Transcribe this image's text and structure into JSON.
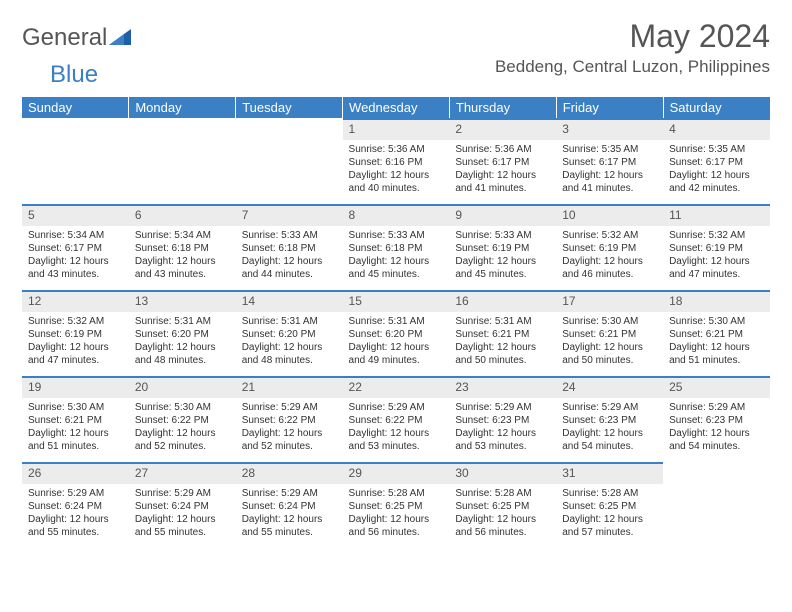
{
  "brand": {
    "part1": "General",
    "part2": "Blue"
  },
  "title": "May 2024",
  "location": "Beddeng, Central Luzon, Philippines",
  "colors": {
    "header_bg": "#3b7fc4",
    "header_text": "#ffffff",
    "daynum_bg": "#ececec",
    "daynum_border": "#3b7fc4",
    "body_text": "#333333",
    "title_text": "#555555",
    "page_bg": "#ffffff"
  },
  "weekdays": [
    "Sunday",
    "Monday",
    "Tuesday",
    "Wednesday",
    "Thursday",
    "Friday",
    "Saturday"
  ],
  "weeks": [
    [
      null,
      null,
      null,
      {
        "n": "1",
        "sr": "5:36 AM",
        "ss": "6:16 PM",
        "dl": "12 hours and 40 minutes."
      },
      {
        "n": "2",
        "sr": "5:36 AM",
        "ss": "6:17 PM",
        "dl": "12 hours and 41 minutes."
      },
      {
        "n": "3",
        "sr": "5:35 AM",
        "ss": "6:17 PM",
        "dl": "12 hours and 41 minutes."
      },
      {
        "n": "4",
        "sr": "5:35 AM",
        "ss": "6:17 PM",
        "dl": "12 hours and 42 minutes."
      }
    ],
    [
      {
        "n": "5",
        "sr": "5:34 AM",
        "ss": "6:17 PM",
        "dl": "12 hours and 43 minutes."
      },
      {
        "n": "6",
        "sr": "5:34 AM",
        "ss": "6:18 PM",
        "dl": "12 hours and 43 minutes."
      },
      {
        "n": "7",
        "sr": "5:33 AM",
        "ss": "6:18 PM",
        "dl": "12 hours and 44 minutes."
      },
      {
        "n": "8",
        "sr": "5:33 AM",
        "ss": "6:18 PM",
        "dl": "12 hours and 45 minutes."
      },
      {
        "n": "9",
        "sr": "5:33 AM",
        "ss": "6:19 PM",
        "dl": "12 hours and 45 minutes."
      },
      {
        "n": "10",
        "sr": "5:32 AM",
        "ss": "6:19 PM",
        "dl": "12 hours and 46 minutes."
      },
      {
        "n": "11",
        "sr": "5:32 AM",
        "ss": "6:19 PM",
        "dl": "12 hours and 47 minutes."
      }
    ],
    [
      {
        "n": "12",
        "sr": "5:32 AM",
        "ss": "6:19 PM",
        "dl": "12 hours and 47 minutes."
      },
      {
        "n": "13",
        "sr": "5:31 AM",
        "ss": "6:20 PM",
        "dl": "12 hours and 48 minutes."
      },
      {
        "n": "14",
        "sr": "5:31 AM",
        "ss": "6:20 PM",
        "dl": "12 hours and 48 minutes."
      },
      {
        "n": "15",
        "sr": "5:31 AM",
        "ss": "6:20 PM",
        "dl": "12 hours and 49 minutes."
      },
      {
        "n": "16",
        "sr": "5:31 AM",
        "ss": "6:21 PM",
        "dl": "12 hours and 50 minutes."
      },
      {
        "n": "17",
        "sr": "5:30 AM",
        "ss": "6:21 PM",
        "dl": "12 hours and 50 minutes."
      },
      {
        "n": "18",
        "sr": "5:30 AM",
        "ss": "6:21 PM",
        "dl": "12 hours and 51 minutes."
      }
    ],
    [
      {
        "n": "19",
        "sr": "5:30 AM",
        "ss": "6:21 PM",
        "dl": "12 hours and 51 minutes."
      },
      {
        "n": "20",
        "sr": "5:30 AM",
        "ss": "6:22 PM",
        "dl": "12 hours and 52 minutes."
      },
      {
        "n": "21",
        "sr": "5:29 AM",
        "ss": "6:22 PM",
        "dl": "12 hours and 52 minutes."
      },
      {
        "n": "22",
        "sr": "5:29 AM",
        "ss": "6:22 PM",
        "dl": "12 hours and 53 minutes."
      },
      {
        "n": "23",
        "sr": "5:29 AM",
        "ss": "6:23 PM",
        "dl": "12 hours and 53 minutes."
      },
      {
        "n": "24",
        "sr": "5:29 AM",
        "ss": "6:23 PM",
        "dl": "12 hours and 54 minutes."
      },
      {
        "n": "25",
        "sr": "5:29 AM",
        "ss": "6:23 PM",
        "dl": "12 hours and 54 minutes."
      }
    ],
    [
      {
        "n": "26",
        "sr": "5:29 AM",
        "ss": "6:24 PM",
        "dl": "12 hours and 55 minutes."
      },
      {
        "n": "27",
        "sr": "5:29 AM",
        "ss": "6:24 PM",
        "dl": "12 hours and 55 minutes."
      },
      {
        "n": "28",
        "sr": "5:29 AM",
        "ss": "6:24 PM",
        "dl": "12 hours and 55 minutes."
      },
      {
        "n": "29",
        "sr": "5:28 AM",
        "ss": "6:25 PM",
        "dl": "12 hours and 56 minutes."
      },
      {
        "n": "30",
        "sr": "5:28 AM",
        "ss": "6:25 PM",
        "dl": "12 hours and 56 minutes."
      },
      {
        "n": "31",
        "sr": "5:28 AM",
        "ss": "6:25 PM",
        "dl": "12 hours and 57 minutes."
      },
      null
    ]
  ],
  "labels": {
    "sunrise": "Sunrise:",
    "sunset": "Sunset:",
    "daylight": "Daylight:"
  }
}
